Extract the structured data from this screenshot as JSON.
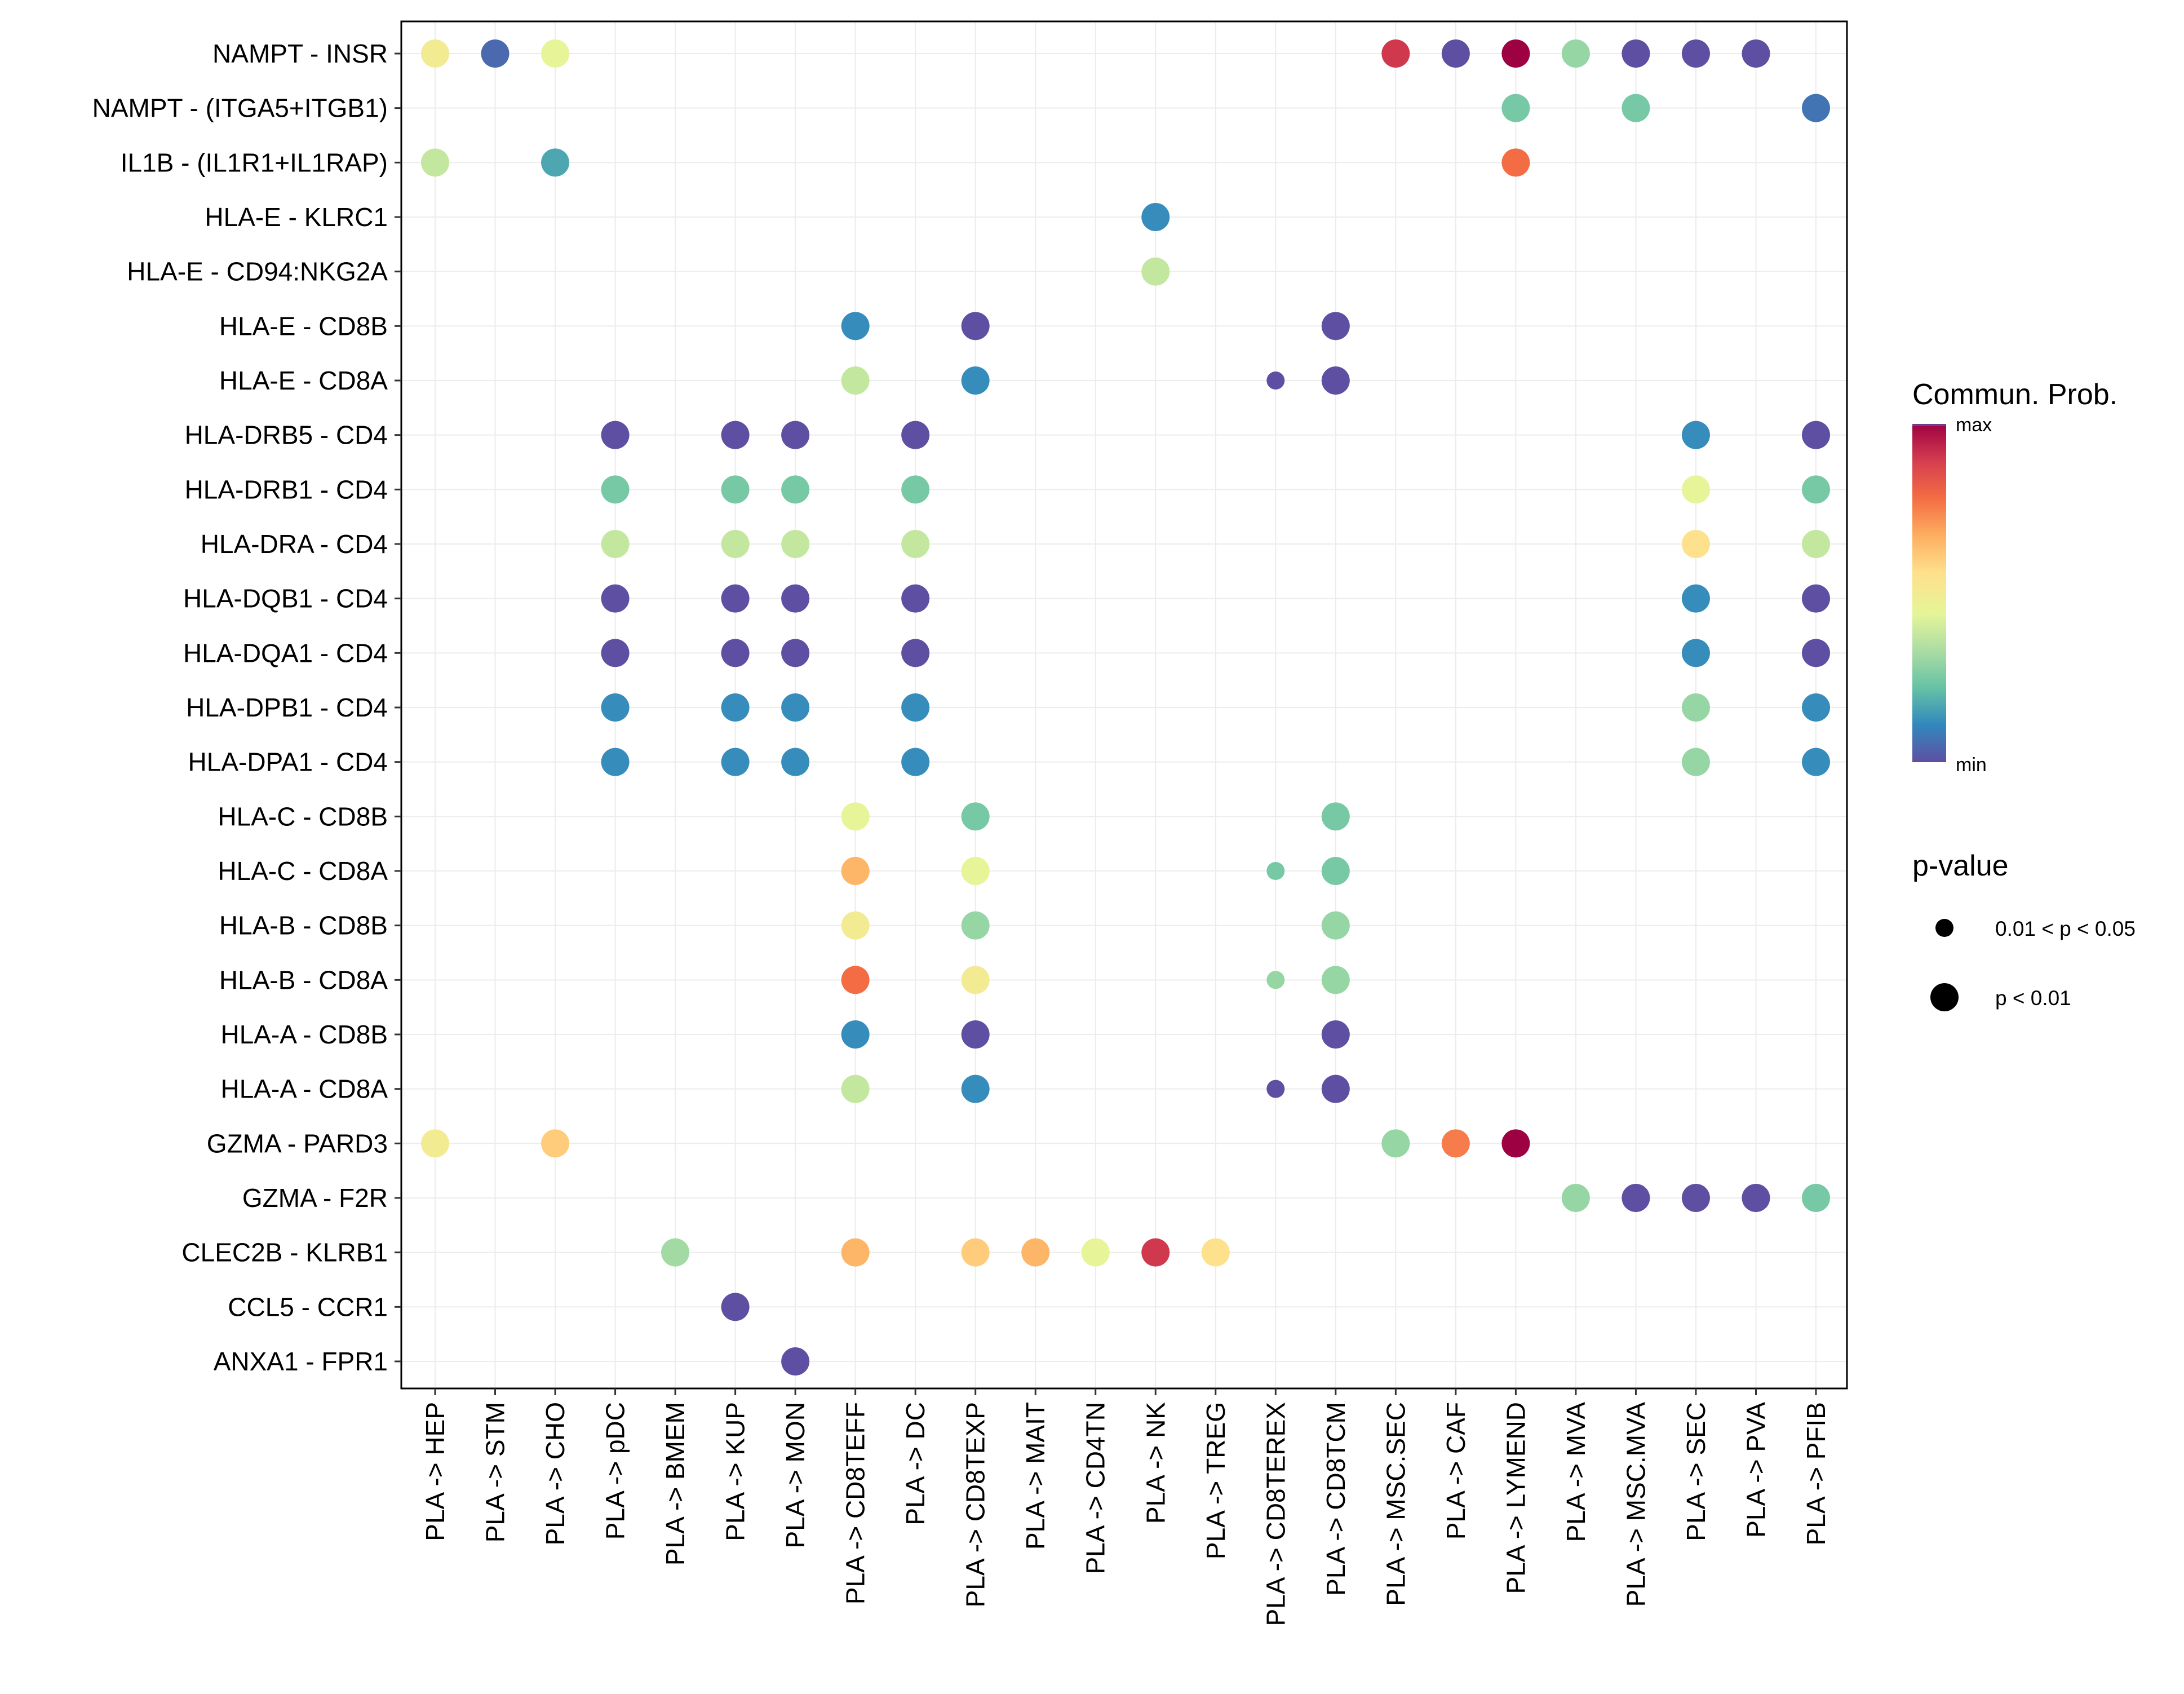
{
  "chart_data": {
    "type": "bubble-heatmap",
    "color_scale": "Spectral",
    "y_categories": [
      "NAMPT - INSR",
      "NAMPT - (ITGA5+ITGB1)",
      "IL1B - (IL1R1+IL1RAP)",
      "HLA-E - KLRC1",
      "HLA-E - CD94:NKG2A",
      "HLA-E - CD8B",
      "HLA-E - CD8A",
      "HLA-DRB5 - CD4",
      "HLA-DRB1 - CD4",
      "HLA-DRA - CD4",
      "HLA-DQB1 - CD4",
      "HLA-DQA1 - CD4",
      "HLA-DPB1 - CD4",
      "HLA-DPA1 - CD4",
      "HLA-C - CD8B",
      "HLA-C - CD8A",
      "HLA-B - CD8B",
      "HLA-B - CD8A",
      "HLA-A - CD8B",
      "HLA-A - CD8A",
      "GZMA - PARD3",
      "GZMA - F2R",
      "CLEC2B - KLRB1",
      "CCL5 - CCR1",
      "ANXA1 - FPR1"
    ],
    "x_categories": [
      "PLA -> HEP",
      "PLA -> STM",
      "PLA -> CHO",
      "PLA -> pDC",
      "PLA -> BMEM",
      "PLA -> KUP",
      "PLA -> MON",
      "PLA -> CD8TEFF",
      "PLA -> DC",
      "PLA -> CD8TEXP",
      "PLA -> MAIT",
      "PLA -> CD4TN",
      "PLA -> NK",
      "PLA -> TREG",
      "PLA -> CD8TEREX",
      "PLA -> CD8TCM",
      "PLA -> MSC.SEC",
      "PLA -> CAF",
      "PLA -> LYMEND",
      "PLA -> MVA",
      "PLA -> MSC.MVA",
      "PLA -> SEC",
      "PLA -> PVA",
      "PLA -> PFIB"
    ],
    "points": [
      {
        "x": 0,
        "y": 0,
        "prob": 0.5,
        "p": "p < 0.01"
      },
      {
        "x": 1,
        "y": 0,
        "prob": 0.05,
        "p": "p < 0.01"
      },
      {
        "x": 2,
        "y": 0,
        "prob": 0.45,
        "p": "p < 0.01"
      },
      {
        "x": 16,
        "y": 0,
        "prob": 0.9,
        "p": "p < 0.01"
      },
      {
        "x": 17,
        "y": 0,
        "prob": 0.0,
        "p": "p < 0.01"
      },
      {
        "x": 18,
        "y": 0,
        "prob": 1.0,
        "p": "p < 0.01"
      },
      {
        "x": 19,
        "y": 0,
        "prob": 0.3,
        "p": "p < 0.01"
      },
      {
        "x": 20,
        "y": 0,
        "prob": 0.0,
        "p": "p < 0.01"
      },
      {
        "x": 21,
        "y": 0,
        "prob": 0.0,
        "p": "p < 0.01"
      },
      {
        "x": 22,
        "y": 0,
        "prob": 0.0,
        "p": "p < 0.01"
      },
      {
        "x": 18,
        "y": 1,
        "prob": 0.25,
        "p": "p < 0.01"
      },
      {
        "x": 20,
        "y": 1,
        "prob": 0.25,
        "p": "p < 0.01"
      },
      {
        "x": 23,
        "y": 1,
        "prob": 0.07,
        "p": "p < 0.01"
      },
      {
        "x": 0,
        "y": 2,
        "prob": 0.38,
        "p": "p < 0.01"
      },
      {
        "x": 2,
        "y": 2,
        "prob": 0.17,
        "p": "p < 0.01"
      },
      {
        "x": 18,
        "y": 2,
        "prob": 0.78,
        "p": "p < 0.01"
      },
      {
        "x": 12,
        "y": 3,
        "prob": 0.12,
        "p": "p < 0.01"
      },
      {
        "x": 12,
        "y": 4,
        "prob": 0.38,
        "p": "p < 0.01"
      },
      {
        "x": 7,
        "y": 5,
        "prob": 0.12,
        "p": "p < 0.01"
      },
      {
        "x": 9,
        "y": 5,
        "prob": 0.0,
        "p": "p < 0.01"
      },
      {
        "x": 15,
        "y": 5,
        "prob": 0.0,
        "p": "p < 0.01"
      },
      {
        "x": 7,
        "y": 6,
        "prob": 0.38,
        "p": "p < 0.01"
      },
      {
        "x": 9,
        "y": 6,
        "prob": 0.12,
        "p": "p < 0.01"
      },
      {
        "x": 14,
        "y": 6,
        "prob": 0.0,
        "p": "0.01 < p < 0.05"
      },
      {
        "x": 15,
        "y": 6,
        "prob": 0.0,
        "p": "p < 0.01"
      },
      {
        "x": 3,
        "y": 7,
        "prob": 0.0,
        "p": "p < 0.01"
      },
      {
        "x": 5,
        "y": 7,
        "prob": 0.0,
        "p": "p < 0.01"
      },
      {
        "x": 6,
        "y": 7,
        "prob": 0.0,
        "p": "p < 0.01"
      },
      {
        "x": 8,
        "y": 7,
        "prob": 0.0,
        "p": "p < 0.01"
      },
      {
        "x": 21,
        "y": 7,
        "prob": 0.12,
        "p": "p < 0.01"
      },
      {
        "x": 23,
        "y": 7,
        "prob": 0.0,
        "p": "p < 0.01"
      },
      {
        "x": 3,
        "y": 8,
        "prob": 0.25,
        "p": "p < 0.01"
      },
      {
        "x": 5,
        "y": 8,
        "prob": 0.25,
        "p": "p < 0.01"
      },
      {
        "x": 6,
        "y": 8,
        "prob": 0.25,
        "p": "p < 0.01"
      },
      {
        "x": 8,
        "y": 8,
        "prob": 0.25,
        "p": "p < 0.01"
      },
      {
        "x": 21,
        "y": 8,
        "prob": 0.45,
        "p": "p < 0.01"
      },
      {
        "x": 23,
        "y": 8,
        "prob": 0.25,
        "p": "p < 0.01"
      },
      {
        "x": 3,
        "y": 9,
        "prob": 0.38,
        "p": "p < 0.01"
      },
      {
        "x": 5,
        "y": 9,
        "prob": 0.38,
        "p": "p < 0.01"
      },
      {
        "x": 6,
        "y": 9,
        "prob": 0.38,
        "p": "p < 0.01"
      },
      {
        "x": 8,
        "y": 9,
        "prob": 0.38,
        "p": "p < 0.01"
      },
      {
        "x": 21,
        "y": 9,
        "prob": 0.55,
        "p": "p < 0.01"
      },
      {
        "x": 23,
        "y": 9,
        "prob": 0.38,
        "p": "p < 0.01"
      },
      {
        "x": 3,
        "y": 10,
        "prob": 0.0,
        "p": "p < 0.01"
      },
      {
        "x": 5,
        "y": 10,
        "prob": 0.0,
        "p": "p < 0.01"
      },
      {
        "x": 6,
        "y": 10,
        "prob": 0.0,
        "p": "p < 0.01"
      },
      {
        "x": 8,
        "y": 10,
        "prob": 0.0,
        "p": "p < 0.01"
      },
      {
        "x": 21,
        "y": 10,
        "prob": 0.12,
        "p": "p < 0.01"
      },
      {
        "x": 23,
        "y": 10,
        "prob": 0.0,
        "p": "p < 0.01"
      },
      {
        "x": 3,
        "y": 11,
        "prob": 0.0,
        "p": "p < 0.01"
      },
      {
        "x": 5,
        "y": 11,
        "prob": 0.0,
        "p": "p < 0.01"
      },
      {
        "x": 6,
        "y": 11,
        "prob": 0.0,
        "p": "p < 0.01"
      },
      {
        "x": 8,
        "y": 11,
        "prob": 0.0,
        "p": "p < 0.01"
      },
      {
        "x": 21,
        "y": 11,
        "prob": 0.12,
        "p": "p < 0.01"
      },
      {
        "x": 23,
        "y": 11,
        "prob": 0.0,
        "p": "p < 0.01"
      },
      {
        "x": 3,
        "y": 12,
        "prob": 0.12,
        "p": "p < 0.01"
      },
      {
        "x": 5,
        "y": 12,
        "prob": 0.12,
        "p": "p < 0.01"
      },
      {
        "x": 6,
        "y": 12,
        "prob": 0.12,
        "p": "p < 0.01"
      },
      {
        "x": 8,
        "y": 12,
        "prob": 0.12,
        "p": "p < 0.01"
      },
      {
        "x": 21,
        "y": 12,
        "prob": 0.3,
        "p": "p < 0.01"
      },
      {
        "x": 23,
        "y": 12,
        "prob": 0.12,
        "p": "p < 0.01"
      },
      {
        "x": 3,
        "y": 13,
        "prob": 0.12,
        "p": "p < 0.01"
      },
      {
        "x": 5,
        "y": 13,
        "prob": 0.12,
        "p": "p < 0.01"
      },
      {
        "x": 6,
        "y": 13,
        "prob": 0.12,
        "p": "p < 0.01"
      },
      {
        "x": 8,
        "y": 13,
        "prob": 0.12,
        "p": "p < 0.01"
      },
      {
        "x": 21,
        "y": 13,
        "prob": 0.3,
        "p": "p < 0.01"
      },
      {
        "x": 23,
        "y": 13,
        "prob": 0.12,
        "p": "p < 0.01"
      },
      {
        "x": 7,
        "y": 14,
        "prob": 0.45,
        "p": "p < 0.01"
      },
      {
        "x": 9,
        "y": 14,
        "prob": 0.25,
        "p": "p < 0.01"
      },
      {
        "x": 15,
        "y": 14,
        "prob": 0.25,
        "p": "p < 0.01"
      },
      {
        "x": 7,
        "y": 15,
        "prob": 0.65,
        "p": "p < 0.01"
      },
      {
        "x": 9,
        "y": 15,
        "prob": 0.45,
        "p": "p < 0.01"
      },
      {
        "x": 14,
        "y": 15,
        "prob": 0.25,
        "p": "0.01 < p < 0.05"
      },
      {
        "x": 15,
        "y": 15,
        "prob": 0.25,
        "p": "p < 0.01"
      },
      {
        "x": 7,
        "y": 16,
        "prob": 0.5,
        "p": "p < 0.01"
      },
      {
        "x": 9,
        "y": 16,
        "prob": 0.3,
        "p": "p < 0.01"
      },
      {
        "x": 15,
        "y": 16,
        "prob": 0.3,
        "p": "p < 0.01"
      },
      {
        "x": 7,
        "y": 17,
        "prob": 0.78,
        "p": "p < 0.01"
      },
      {
        "x": 9,
        "y": 17,
        "prob": 0.5,
        "p": "p < 0.01"
      },
      {
        "x": 14,
        "y": 17,
        "prob": 0.3,
        "p": "0.01 < p < 0.05"
      },
      {
        "x": 15,
        "y": 17,
        "prob": 0.3,
        "p": "p < 0.01"
      },
      {
        "x": 7,
        "y": 18,
        "prob": 0.12,
        "p": "p < 0.01"
      },
      {
        "x": 9,
        "y": 18,
        "prob": 0.0,
        "p": "p < 0.01"
      },
      {
        "x": 15,
        "y": 18,
        "prob": 0.0,
        "p": "p < 0.01"
      },
      {
        "x": 7,
        "y": 19,
        "prob": 0.38,
        "p": "p < 0.01"
      },
      {
        "x": 9,
        "y": 19,
        "prob": 0.12,
        "p": "p < 0.01"
      },
      {
        "x": 14,
        "y": 19,
        "prob": 0.0,
        "p": "0.01 < p < 0.05"
      },
      {
        "x": 15,
        "y": 19,
        "prob": 0.0,
        "p": "p < 0.01"
      },
      {
        "x": 0,
        "y": 20,
        "prob": 0.5,
        "p": "p < 0.01"
      },
      {
        "x": 2,
        "y": 20,
        "prob": 0.6,
        "p": "p < 0.01"
      },
      {
        "x": 16,
        "y": 20,
        "prob": 0.3,
        "p": "p < 0.01"
      },
      {
        "x": 17,
        "y": 20,
        "prob": 0.75,
        "p": "p < 0.01"
      },
      {
        "x": 18,
        "y": 20,
        "prob": 1.0,
        "p": "p < 0.01"
      },
      {
        "x": 19,
        "y": 21,
        "prob": 0.3,
        "p": "p < 0.01"
      },
      {
        "x": 20,
        "y": 21,
        "prob": 0.0,
        "p": "p < 0.01"
      },
      {
        "x": 21,
        "y": 21,
        "prob": 0.0,
        "p": "p < 0.01"
      },
      {
        "x": 22,
        "y": 21,
        "prob": 0.0,
        "p": "p < 0.01"
      },
      {
        "x": 23,
        "y": 21,
        "prob": 0.25,
        "p": "p < 0.01"
      },
      {
        "x": 4,
        "y": 22,
        "prob": 0.32,
        "p": "p < 0.01"
      },
      {
        "x": 7,
        "y": 22,
        "prob": 0.65,
        "p": "p < 0.01"
      },
      {
        "x": 9,
        "y": 22,
        "prob": 0.6,
        "p": "p < 0.01"
      },
      {
        "x": 10,
        "y": 22,
        "prob": 0.65,
        "p": "p < 0.01"
      },
      {
        "x": 11,
        "y": 22,
        "prob": 0.45,
        "p": "p < 0.01"
      },
      {
        "x": 12,
        "y": 22,
        "prob": 0.9,
        "p": "p < 0.01"
      },
      {
        "x": 13,
        "y": 22,
        "prob": 0.55,
        "p": "p < 0.01"
      },
      {
        "x": 5,
        "y": 23,
        "prob": 0.0,
        "p": "p < 0.01"
      },
      {
        "x": 6,
        "y": 24,
        "prob": 0.0,
        "p": "p < 0.01"
      }
    ],
    "legend": {
      "color_title": "Commun. Prob.",
      "color_max_label": "max",
      "color_min_label": "min",
      "size_title": "p-value",
      "size_levels": [
        "0.01 < p < 0.05",
        "p < 0.01"
      ]
    },
    "colors": [
      "#5E4FA2",
      "#3288BD",
      "#66C2A5",
      "#ABDDA4",
      "#E6F598",
      "#FEE08B",
      "#FDAE61",
      "#F46D43",
      "#D53E4F",
      "#9E0142"
    ]
  }
}
